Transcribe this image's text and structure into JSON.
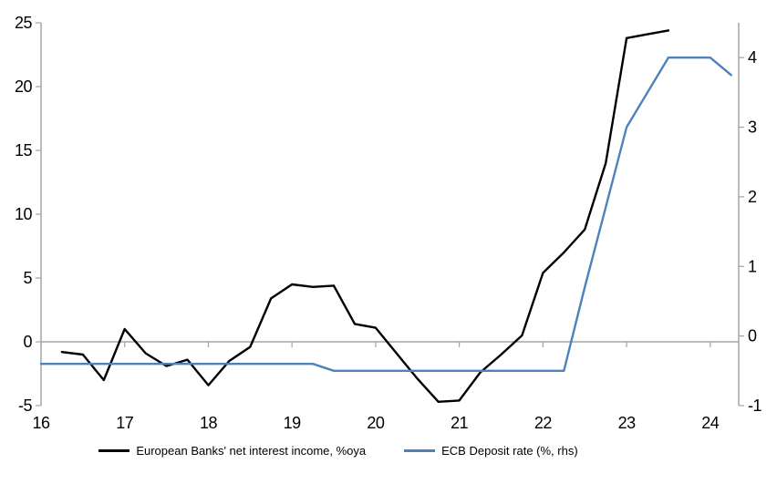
{
  "chart_data": {
    "type": "line",
    "title": "",
    "xlabel": "",
    "ylabel_left": "",
    "ylabel_right": "",
    "legend_position": "bottom-center",
    "grid": "zero-line-only",
    "x_axis": {
      "range": [
        16,
        24.34
      ],
      "ticks": [
        16,
        17,
        18,
        19,
        20,
        21,
        22,
        23,
        24
      ],
      "tick_labels": [
        "16",
        "17",
        "18",
        "19",
        "20",
        "21",
        "22",
        "23",
        "24"
      ]
    },
    "left_axis": {
      "range": [
        -5,
        25
      ],
      "ticks": [
        -5,
        0,
        5,
        10,
        15,
        20,
        25
      ],
      "tick_labels": [
        "-5",
        "0",
        "5",
        "10",
        "15",
        "20",
        "25"
      ]
    },
    "right_axis": {
      "range": [
        -1,
        4.5
      ],
      "ticks": [
        -1,
        0,
        1,
        2,
        3,
        4
      ],
      "tick_labels": [
        "-1",
        "0",
        "1",
        "2",
        "3",
        "4"
      ]
    },
    "series": [
      {
        "name": "European Banks' net interest income, %oya",
        "axis": "left",
        "color": "#000000",
        "x": [
          16.25,
          16.5,
          16.75,
          17,
          17.25,
          17.5,
          17.75,
          18,
          18.25,
          18.5,
          18.75,
          19,
          19.25,
          19.5,
          19.75,
          20,
          20.25,
          20.5,
          20.75,
          21,
          21.25,
          21.5,
          21.75,
          22,
          22.25,
          22.5,
          22.75,
          23,
          23.25,
          23.5
        ],
        "values": [
          -0.8,
          -1.0,
          -3.0,
          1.0,
          -0.9,
          -1.9,
          -1.4,
          -3.4,
          -1.5,
          -0.4,
          3.4,
          4.5,
          4.3,
          4.4,
          1.4,
          1.1,
          -0.9,
          -2.9,
          -4.7,
          -4.6,
          -2.4,
          -1.0,
          0.5,
          5.4,
          7.0,
          8.8,
          14.0,
          23.8,
          24.1,
          24.4
        ]
      },
      {
        "name": "ECB Deposit rate (%, rhs)",
        "axis": "right",
        "color": "#4f81bd",
        "x": [
          16,
          19.25,
          19.5,
          22.25,
          22.5,
          22.75,
          23,
          23.25,
          23.5,
          23.75,
          24,
          24.25
        ],
        "values": [
          -0.4,
          -0.4,
          -0.5,
          -0.5,
          0.7,
          1.85,
          3.0,
          3.5,
          4.0,
          4.0,
          4.0,
          3.75
        ]
      }
    ],
    "colors": {
      "axis": "#a6a6a6",
      "label_text": "#000000",
      "background": "#ffffff"
    }
  }
}
